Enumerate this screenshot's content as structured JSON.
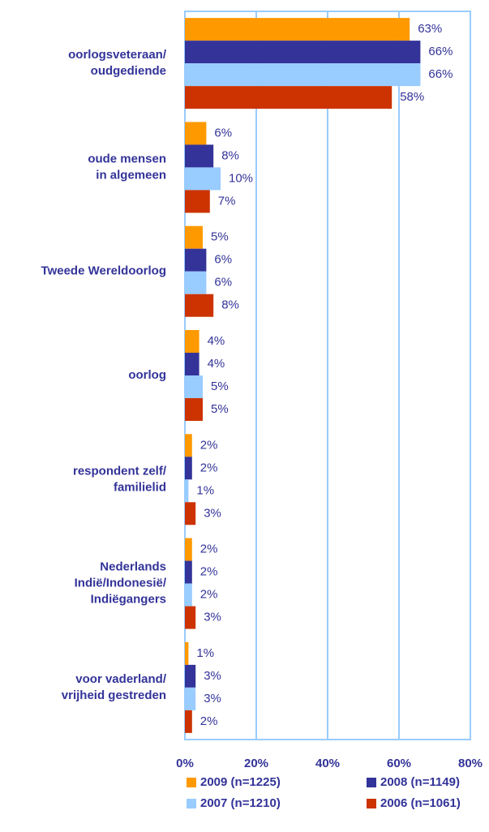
{
  "chart_data": {
    "type": "bar",
    "orientation": "horizontal",
    "categories": [
      [
        "oorlogsveteraan/",
        "oudgediende"
      ],
      [
        "oude mensen",
        "in algemeen"
      ],
      [
        "Tweede Wereldoorlog"
      ],
      [
        "oorlog"
      ],
      [
        "respondent zelf/",
        "familielid"
      ],
      [
        "Nederlands",
        "Indië/Indonesië/",
        "Indiëgangers"
      ],
      [
        "voor vaderland/",
        "vrijheid gestreden"
      ]
    ],
    "series": [
      {
        "name": "2009 (n=1225)",
        "color": "#ff9900",
        "values": [
          63,
          6,
          5,
          4,
          2,
          2,
          1
        ],
        "value_labels": [
          "63%",
          "6%",
          "5%",
          "4%",
          "2%",
          "2%",
          "1%"
        ]
      },
      {
        "name": "2008 (n=1149)",
        "color": "#333399",
        "values": [
          66,
          8,
          6,
          4,
          2,
          2,
          3
        ],
        "value_labels": [
          "66%",
          "8%",
          "6%",
          "4%",
          "2%",
          "2%",
          "3%"
        ]
      },
      {
        "name": "2007 (n=1210)",
        "color": "#99ccff",
        "values": [
          66,
          10,
          6,
          5,
          1,
          2,
          3
        ],
        "value_labels": [
          "66%",
          "10%",
          "6%",
          "5%",
          "1%",
          "2%",
          "3%"
        ]
      },
      {
        "name": "2006 (n=1061)",
        "color": "#cc3300",
        "values": [
          58,
          7,
          8,
          5,
          3,
          3,
          2
        ],
        "value_labels": [
          "58%",
          "7%",
          "8%",
          "5%",
          "3%",
          "3%",
          "2%"
        ]
      }
    ],
    "xlim": [
      0,
      80
    ],
    "xticks": [
      {
        "value": 0,
        "label": "0%"
      },
      {
        "value": 20,
        "label": "20%"
      },
      {
        "value": 40,
        "label": "40%"
      },
      {
        "value": 60,
        "label": "60%"
      },
      {
        "value": 80,
        "label": "80%"
      }
    ],
    "grid": true,
    "grid_color": "#99ccff",
    "legend": "bottom"
  }
}
